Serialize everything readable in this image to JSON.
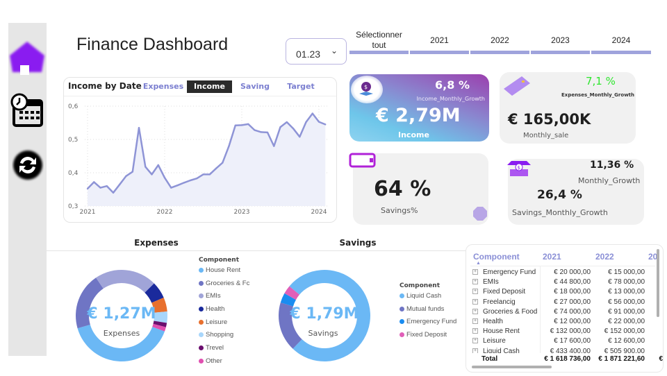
{
  "header": {
    "title": "Finance Dashboard",
    "month_selected": "01.23",
    "years": [
      "Sélectionner tout",
      "2021",
      "2022",
      "2023",
      "2024"
    ]
  },
  "sidebar": {
    "icons": [
      "home-icon",
      "calendar-clock-icon",
      "refresh-icon"
    ]
  },
  "line_card": {
    "title": "Income by Date",
    "tabs": [
      "Expenses",
      "Income",
      "Saving",
      "Target"
    ],
    "active_tab": "Income"
  },
  "kpis": {
    "income": {
      "value": "€ 2,79M",
      "label": "Income",
      "growth": "6,8 %",
      "growth_label": "Income_Monthly_Growth"
    },
    "monthly_sale": {
      "value": "€ 165,00K",
      "label": "Monthly_sale",
      "growth": "7,1 %",
      "growth_label": "Expenses_Monthly_Growth"
    },
    "savings_pct": {
      "value": "64 %",
      "label": "Savings%"
    },
    "savings_growth": {
      "growth": "11,36 %",
      "growth_label": "Monthly_Growth",
      "value": "26,4 %",
      "label": "Savings_Monthly_Growth"
    }
  },
  "colors": {
    "line": "#8e94d6",
    "accent": "#9fa3dc"
  },
  "chart_data": [
    {
      "type": "area",
      "title": "Income by Date",
      "x_start": "2021-01",
      "x_step": "month",
      "xticks": [
        "2021",
        "2022",
        "2023",
        "2024"
      ],
      "yticks": [
        "0,3",
        "0,4",
        "0,5",
        "0,6"
      ],
      "ylim": [
        0.3,
        0.6
      ],
      "values": [
        0.352,
        0.372,
        0.355,
        0.36,
        0.34,
        0.365,
        0.39,
        0.403,
        0.535,
        0.418,
        0.395,
        0.423,
        0.385,
        0.355,
        0.362,
        0.37,
        0.377,
        0.383,
        0.395,
        0.395,
        0.413,
        0.43,
        0.48,
        0.542,
        0.543,
        0.546,
        0.528,
        0.522,
        0.521,
        0.48,
        0.537,
        0.552,
        0.533,
        0.508,
        0.552,
        0.578,
        0.553,
        0.545
      ]
    },
    {
      "type": "pie",
      "title": "Expenses",
      "center_value": "€ 1,27M",
      "center_label": "Expenses",
      "legend_title": "Component",
      "labels": [
        "House Rent",
        "Groceries & Fc",
        "EMIs",
        "Health",
        "Leisure",
        "Shopping",
        "Trevel",
        "Other"
      ],
      "values": [
        40,
        20,
        22,
        6,
        5,
        4,
        1.5,
        1.5
      ],
      "colors": [
        "#6bb8f5",
        "#6f75c4",
        "#a0a4d8",
        "#1a2a9c",
        "#e8702e",
        "#a8d6fb",
        "#6b0f6e",
        "#e04fb0"
      ]
    },
    {
      "type": "pie",
      "title": "Savings",
      "center_value": "€ 1,79M",
      "center_label": "Savings",
      "legend_title": "Component",
      "labels": [
        "Liquid Cash",
        "Mutual funds",
        "Emergency Fund",
        "Fixed Deposit"
      ],
      "values": [
        76,
        17.5,
        3.5,
        3
      ],
      "colors": [
        "#6bb8f5",
        "#6f75c4",
        "#1a8cf0",
        "#e05fb8"
      ]
    }
  ],
  "table": {
    "headers": [
      "Component",
      "2021",
      "2022",
      "20"
    ],
    "rows": [
      [
        "Emergency Fund",
        "€ 20 000,00",
        "€ 15 000,00"
      ],
      [
        "EMIs",
        "€ 44 800,00",
        "€ 78 000,00"
      ],
      [
        "Fixed Deposit",
        "€ 18 000,00",
        "€ 13 000,00"
      ],
      [
        "Freelancig",
        "€ 27 000,00",
        "€ 56 000,00"
      ],
      [
        "Groceries & Food",
        "€ 74 000,00",
        "€ 91 000,00"
      ],
      [
        "Health",
        "€ 12 000,00",
        "€ 22 000,00"
      ],
      [
        "House Rent",
        "€ 132 000,00",
        "€ 152 000,00"
      ],
      [
        "Leisure",
        "€ 17 600,00",
        "€ 12 600,00"
      ],
      [
        "Liquid Cash",
        "€ 433 400,00",
        "€ 505 900,00"
      ]
    ],
    "total": [
      "Total",
      "€ 1 618 736,00",
      "€ 1 871 221,60",
      "€"
    ]
  }
}
